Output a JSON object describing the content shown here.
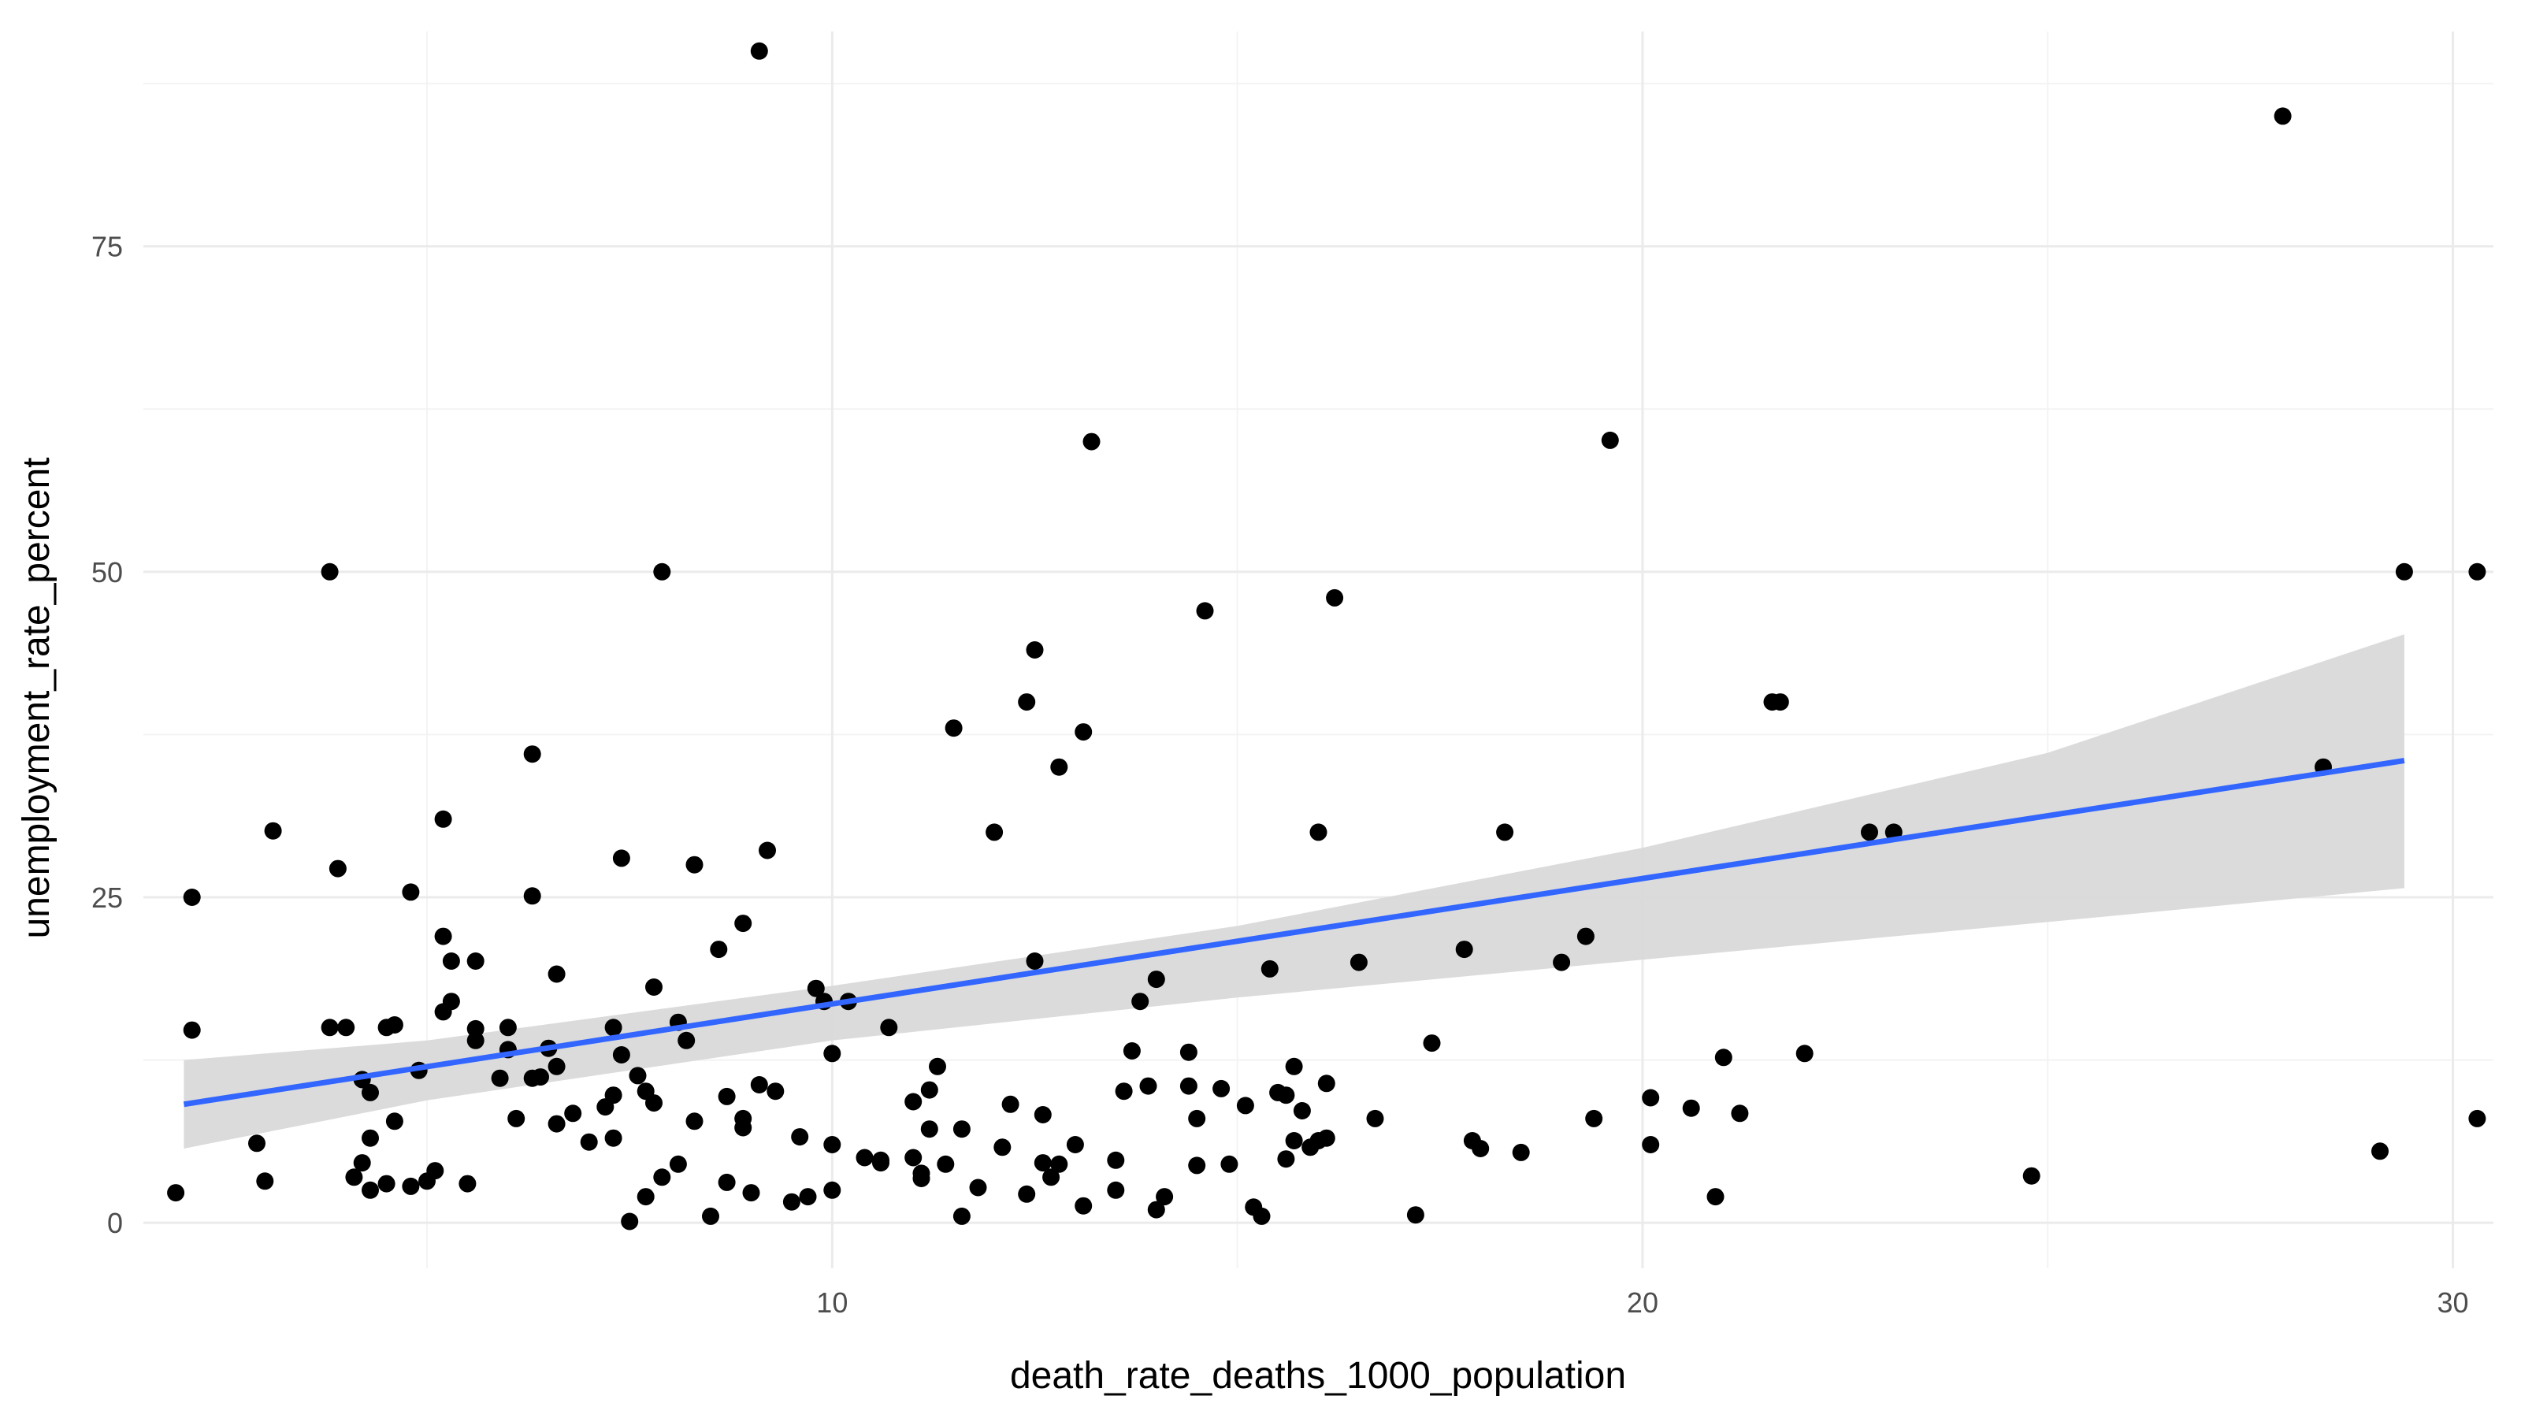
{
  "chart_data": {
    "type": "scatter",
    "xlabel": "death_rate_deaths_1000_population",
    "ylabel": "unemployment_rate_percent",
    "xlim": [
      1.5,
      30.5
    ],
    "ylim": [
      -3.5,
      91.5
    ],
    "x_ticks": [
      10,
      20,
      30
    ],
    "x_tick_labels": [
      "10",
      "20",
      "30"
    ],
    "x_minor_ticks": [
      5,
      15,
      25
    ],
    "y_ticks": [
      0,
      25,
      50,
      75
    ],
    "y_tick_labels": [
      "0",
      "25",
      "50",
      "75"
    ],
    "y_minor_ticks": [
      12.5,
      37.5,
      62.5,
      87.5
    ],
    "grid": true,
    "colors": {
      "points": "#000000",
      "trend_line": "#3366ff",
      "confidence_band": "#d9d9d9"
    },
    "points": [
      [
        1.9,
        2.3
      ],
      [
        2.1,
        25
      ],
      [
        2.1,
        14.8
      ],
      [
        2.9,
        6.1
      ],
      [
        3.0,
        3.2
      ],
      [
        3.1,
        30.1
      ],
      [
        3.8,
        50
      ],
      [
        3.9,
        27.2
      ],
      [
        3.8,
        15
      ],
      [
        4.0,
        15
      ],
      [
        4.1,
        3.5
      ],
      [
        4.2,
        11
      ],
      [
        4.3,
        2.5
      ],
      [
        4.2,
        4.6
      ],
      [
        4.3,
        6.5
      ],
      [
        4.3,
        10
      ],
      [
        4.5,
        15
      ],
      [
        4.5,
        3
      ],
      [
        4.6,
        7.8
      ],
      [
        4.6,
        15.2
      ],
      [
        4.8,
        25.4
      ],
      [
        4.8,
        2.8
      ],
      [
        4.9,
        11.7
      ],
      [
        5.0,
        3.2
      ],
      [
        5.1,
        4
      ],
      [
        5.2,
        22
      ],
      [
        5.2,
        16.2
      ],
      [
        5.2,
        31
      ],
      [
        5.3,
        20.1
      ],
      [
        5.3,
        17
      ],
      [
        5.5,
        3
      ],
      [
        5.6,
        20.1
      ],
      [
        5.6,
        14
      ],
      [
        5.6,
        14.9
      ],
      [
        5.9,
        11.1
      ],
      [
        6.0,
        15
      ],
      [
        6.0,
        13.3
      ],
      [
        6.1,
        8
      ],
      [
        6.3,
        36
      ],
      [
        6.3,
        25.1
      ],
      [
        6.3,
        11.1
      ],
      [
        6.4,
        11.2
      ],
      [
        6.5,
        13.4
      ],
      [
        6.6,
        7.6
      ],
      [
        6.6,
        12
      ],
      [
        6.6,
        19.1
      ],
      [
        6.8,
        8.4
      ],
      [
        7.0,
        6.2
      ],
      [
        7.2,
        8.9
      ],
      [
        7.3,
        6.5
      ],
      [
        7.3,
        9.8
      ],
      [
        7.3,
        15
      ],
      [
        7.4,
        12.9
      ],
      [
        7.4,
        28
      ],
      [
        7.5,
        0.1
      ],
      [
        7.6,
        11.3
      ],
      [
        7.7,
        2
      ],
      [
        7.7,
        10.1
      ],
      [
        7.8,
        9.2
      ],
      [
        7.8,
        18.1
      ],
      [
        7.9,
        3.5
      ],
      [
        7.9,
        50
      ],
      [
        8.1,
        4.5
      ],
      [
        8.1,
        15.4
      ],
      [
        8.2,
        14
      ],
      [
        8.3,
        27.5
      ],
      [
        8.3,
        7.8
      ],
      [
        8.5,
        0.5
      ],
      [
        8.6,
        21
      ],
      [
        8.7,
        3.1
      ],
      [
        8.7,
        9.7
      ],
      [
        8.9,
        23
      ],
      [
        8.9,
        8
      ],
      [
        8.9,
        7.3
      ],
      [
        9.0,
        2.3
      ],
      [
        9.1,
        10.6
      ],
      [
        9.2,
        28.6
      ],
      [
        9.1,
        90
      ],
      [
        9.3,
        10.1
      ],
      [
        9.5,
        1.6
      ],
      [
        9.6,
        6.6
      ],
      [
        9.7,
        2
      ],
      [
        9.8,
        18
      ],
      [
        9.9,
        17
      ],
      [
        10.0,
        13
      ],
      [
        10.0,
        6
      ],
      [
        10.0,
        2.5
      ],
      [
        10.2,
        17
      ],
      [
        10.4,
        5
      ],
      [
        10.6,
        4.8
      ],
      [
        10.6,
        4.6
      ],
      [
        10.7,
        15
      ],
      [
        11.0,
        5
      ],
      [
        11.0,
        9.3
      ],
      [
        11.1,
        3.8
      ],
      [
        11.1,
        3.4
      ],
      [
        11.2,
        10.2
      ],
      [
        11.2,
        7.2
      ],
      [
        11.3,
        12
      ],
      [
        11.4,
        4.5
      ],
      [
        11.5,
        38
      ],
      [
        11.6,
        0.5
      ],
      [
        11.6,
        7.2
      ],
      [
        11.8,
        2.7
      ],
      [
        12.0,
        30
      ],
      [
        12.1,
        5.8
      ],
      [
        12.2,
        9.1
      ],
      [
        12.4,
        2.2
      ],
      [
        12.4,
        40
      ],
      [
        12.5,
        20.1
      ],
      [
        12.5,
        44
      ],
      [
        12.6,
        4.6
      ],
      [
        12.6,
        8.3
      ],
      [
        12.7,
        3.5
      ],
      [
        12.8,
        35
      ],
      [
        12.8,
        4.5
      ],
      [
        13.0,
        6
      ],
      [
        13.1,
        37.7
      ],
      [
        13.1,
        1.3
      ],
      [
        13.2,
        60
      ],
      [
        13.5,
        4.8
      ],
      [
        13.5,
        2.5
      ],
      [
        13.6,
        10.1
      ],
      [
        13.7,
        13.2
      ],
      [
        13.8,
        17
      ],
      [
        13.9,
        10.5
      ],
      [
        14.0,
        18.7
      ],
      [
        14.0,
        1
      ],
      [
        14.1,
        2
      ],
      [
        14.4,
        10.5
      ],
      [
        14.4,
        13.1
      ],
      [
        14.5,
        4.4
      ],
      [
        14.5,
        8
      ],
      [
        14.6,
        47
      ],
      [
        14.8,
        10.3
      ],
      [
        14.9,
        4.5
      ],
      [
        15.1,
        9
      ],
      [
        15.2,
        1.2
      ],
      [
        15.3,
        0.5
      ],
      [
        15.4,
        19.5
      ],
      [
        15.5,
        10
      ],
      [
        15.6,
        4.9
      ],
      [
        15.6,
        9.8
      ],
      [
        15.7,
        6.3
      ],
      [
        15.7,
        12
      ],
      [
        15.8,
        8.6
      ],
      [
        15.9,
        5.8
      ],
      [
        16.0,
        6.3
      ],
      [
        16.0,
        30
      ],
      [
        16.1,
        6.5
      ],
      [
        16.1,
        10.7
      ],
      [
        16.2,
        48
      ],
      [
        16.5,
        20
      ],
      [
        16.7,
        8
      ],
      [
        17.2,
        0.6
      ],
      [
        17.4,
        13.8
      ],
      [
        17.8,
        21
      ],
      [
        17.9,
        6.3
      ],
      [
        18.0,
        5.7
      ],
      [
        18.3,
        30
      ],
      [
        18.5,
        5.4
      ],
      [
        19.0,
        20
      ],
      [
        19.3,
        22
      ],
      [
        19.4,
        8
      ],
      [
        19.6,
        60.1
      ],
      [
        20.1,
        6
      ],
      [
        20.1,
        9.6
      ],
      [
        20.6,
        8.8
      ],
      [
        21.6,
        40
      ],
      [
        22.8,
        30
      ],
      [
        24.8,
        3.6
      ],
      [
        27.9,
        85
      ],
      [
        28.4,
        35
      ],
      [
        29.1,
        5.5
      ],
      [
        29.4,
        50
      ],
      [
        30.3,
        50
      ],
      [
        30.3,
        8
      ]
    ],
    "extra_points": [
      [
        20.9,
        2
      ],
      [
        21.0,
        12.7
      ],
      [
        21.7,
        40
      ],
      [
        21.2,
        8.4
      ],
      [
        22.0,
        13
      ],
      [
        23.1,
        30
      ]
    ],
    "trend": {
      "x": [
        2.0,
        29.4
      ],
      "y": [
        9.1,
        35.5
      ]
    },
    "confidence_band": {
      "x": [
        2.0,
        5.0,
        10.0,
        15.0,
        20.0,
        25.0,
        29.4
      ],
      "lower": [
        5.7,
        9.4,
        14.0,
        17.3,
        20.2,
        23.1,
        25.7
      ],
      "upper": [
        12.5,
        14.0,
        18.2,
        22.8,
        28.8,
        36.1,
        45.2
      ]
    }
  }
}
